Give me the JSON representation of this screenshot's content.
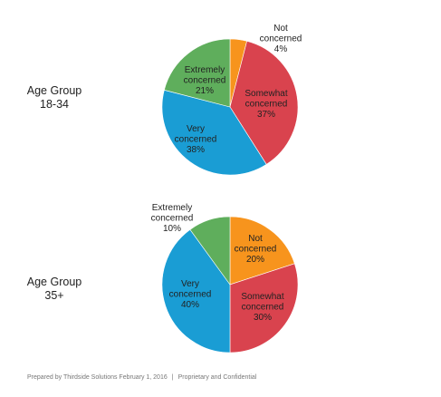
{
  "chart_data": [
    {
      "type": "pie",
      "group_label": [
        "Age Group",
        "18-34"
      ],
      "slices": [
        {
          "label": [
            "Not",
            "concerned"
          ],
          "value": 4,
          "value_text": "4%",
          "color": "#F7941D"
        },
        {
          "label": [
            "Somewhat",
            "concerned"
          ],
          "value": 37,
          "value_text": "37%",
          "color": "#D9434E"
        },
        {
          "label": [
            "Very",
            "concerned"
          ],
          "value": 38,
          "value_text": "38%",
          "color": "#1A9DD4"
        },
        {
          "label": [
            "Extremely",
            "concerned"
          ],
          "value": 21,
          "value_text": "21%",
          "color": "#5FAE5C"
        }
      ]
    },
    {
      "type": "pie",
      "group_label": [
        "Age Group",
        "35+"
      ],
      "slices": [
        {
          "label": [
            "Not",
            "concerned"
          ],
          "value": 20,
          "value_text": "20%",
          "color": "#F7941D"
        },
        {
          "label": [
            "Somewhat",
            "concerned"
          ],
          "value": 30,
          "value_text": "30%",
          "color": "#D9434E"
        },
        {
          "label": [
            "Very",
            "concerned"
          ],
          "value": 40,
          "value_text": "40%",
          "color": "#1A9DD4"
        },
        {
          "label": [
            "Extremely",
            "concerned"
          ],
          "value": 10,
          "value_text": "10%",
          "color": "#5FAE5C"
        }
      ]
    }
  ],
  "footer": {
    "prepared": "Prepared by Thirdside Solutions February 1, 2016",
    "separator": "|",
    "confidential": "Proprietary and Confidential"
  }
}
